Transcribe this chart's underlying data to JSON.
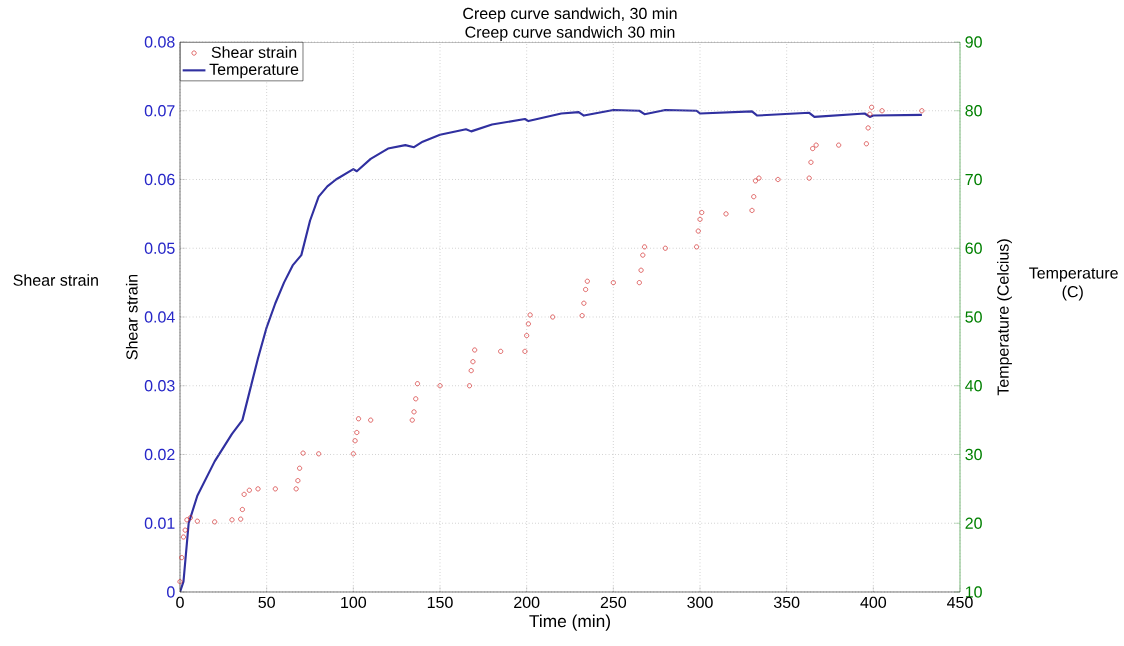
{
  "chart_data": {
    "type": "scatter",
    "title": "Creep curve sandwich, 30 min",
    "subtitle": "Creep curve sandwich 30 min",
    "xlabel": "Time (min)",
    "ylabel": "Shear strain",
    "y2label": "Temperature (Celcius)",
    "annotations": [
      "Shear strain",
      "Temperature (C)"
    ],
    "xlim": [
      0,
      450
    ],
    "xticks": [
      0,
      50,
      100,
      150,
      200,
      250,
      300,
      350,
      400,
      450
    ],
    "ylim": [
      0,
      0.08
    ],
    "yticks": [
      0,
      0.01,
      0.02,
      0.03,
      0.04,
      0.05,
      0.06,
      0.07,
      0.08
    ],
    "y2lim": [
      10,
      90
    ],
    "y2ticks": [
      10,
      20,
      30,
      40,
      50,
      60,
      70,
      80,
      90
    ],
    "grid": true,
    "legend": "top left",
    "series": [
      {
        "name": "Shear strain",
        "marker": "circle",
        "color": "#d02020",
        "x": [
          0,
          1,
          2,
          3,
          4,
          6,
          10,
          20,
          30,
          35,
          36,
          37,
          40,
          45,
          55,
          67,
          68,
          69,
          71,
          80,
          100,
          101,
          102,
          103,
          110,
          134,
          135,
          136,
          137,
          150,
          167,
          168,
          169,
          170,
          185,
          199,
          200,
          201,
          202,
          215,
          232,
          233,
          234,
          235,
          250,
          265,
          266,
          267,
          268,
          280,
          298,
          299,
          300,
          301,
          315,
          330,
          331,
          332,
          334,
          345,
          363,
          364,
          365,
          367,
          380,
          396,
          397,
          398,
          399,
          405,
          428
        ],
        "values": [
          0.0015,
          0.005,
          0.008,
          0.009,
          0.0105,
          0.0108,
          0.0103,
          0.0102,
          0.0105,
          0.0106,
          0.012,
          0.0142,
          0.0148,
          0.015,
          0.015,
          0.015,
          0.0162,
          0.018,
          0.0202,
          0.0201,
          0.0201,
          0.022,
          0.0232,
          0.0252,
          0.025,
          0.025,
          0.0262,
          0.0281,
          0.0303,
          0.03,
          0.03,
          0.0322,
          0.0335,
          0.0352,
          0.035,
          0.035,
          0.0373,
          0.039,
          0.0403,
          0.04,
          0.0402,
          0.042,
          0.044,
          0.0452,
          0.045,
          0.045,
          0.0468,
          0.049,
          0.0502,
          0.05,
          0.0502,
          0.0525,
          0.0542,
          0.0552,
          0.055,
          0.0555,
          0.0575,
          0.0598,
          0.0602,
          0.06,
          0.0602,
          0.0625,
          0.0645,
          0.065,
          0.065,
          0.0652,
          0.0675,
          0.0695,
          0.0705,
          0.07,
          0.07
        ]
      },
      {
        "name": "Temperature",
        "type": "line",
        "axis": "y2",
        "color": "#3030a0",
        "x": [
          0,
          2,
          5,
          10,
          20,
          30,
          36,
          40,
          45,
          50,
          55,
          60,
          65,
          70,
          75,
          80,
          85,
          90,
          100,
          102,
          110,
          120,
          130,
          135,
          140,
          150,
          165,
          168,
          180,
          199,
          201,
          220,
          230,
          233,
          250,
          265,
          268,
          280,
          298,
          300,
          330,
          333,
          363,
          366,
          395,
          398,
          400,
          428
        ],
        "values": [
          10,
          11.5,
          20,
          24,
          29,
          33,
          35,
          39,
          44,
          48.5,
          52,
          55,
          57.5,
          59,
          64,
          67.5,
          69,
          70,
          71.5,
          71.2,
          73,
          74.5,
          75,
          74.7,
          75.5,
          76.5,
          77.3,
          77,
          78,
          78.8,
          78.5,
          79.6,
          79.8,
          79.3,
          80.1,
          80,
          79.5,
          80.1,
          80,
          79.6,
          79.9,
          79.3,
          79.7,
          79.1,
          79.6,
          79.1,
          79.3,
          79.4
        ]
      }
    ]
  }
}
